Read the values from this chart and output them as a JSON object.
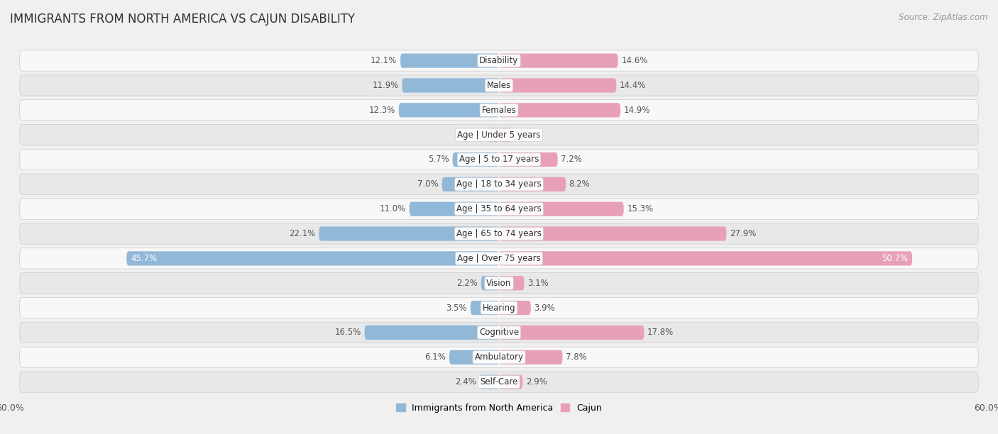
{
  "title": "IMMIGRANTS FROM NORTH AMERICA VS CAJUN DISABILITY",
  "source": "Source: ZipAtlas.com",
  "categories": [
    "Disability",
    "Males",
    "Females",
    "Age | Under 5 years",
    "Age | 5 to 17 years",
    "Age | 18 to 34 years",
    "Age | 35 to 64 years",
    "Age | 65 to 74 years",
    "Age | Over 75 years",
    "Vision",
    "Hearing",
    "Cognitive",
    "Ambulatory",
    "Self-Care"
  ],
  "left_values": [
    12.1,
    11.9,
    12.3,
    1.4,
    5.7,
    7.0,
    11.0,
    22.1,
    45.7,
    2.2,
    3.5,
    16.5,
    6.1,
    2.4
  ],
  "right_values": [
    14.6,
    14.4,
    14.9,
    1.6,
    7.2,
    8.2,
    15.3,
    27.9,
    50.7,
    3.1,
    3.9,
    17.8,
    7.8,
    2.9
  ],
  "left_color": "#92b8d8",
  "right_color": "#e8a0b8",
  "left_label": "Immigrants from North America",
  "right_label": "Cajun",
  "background_color": "#f0f0f0",
  "row_color_odd": "#f8f8f8",
  "row_color_even": "#e8e8e8",
  "xlim": 60.0,
  "bar_height": 0.58,
  "title_fontsize": 12,
  "label_fontsize": 8.5,
  "cat_fontsize": 8.5,
  "tick_fontsize": 9,
  "source_fontsize": 8.5
}
